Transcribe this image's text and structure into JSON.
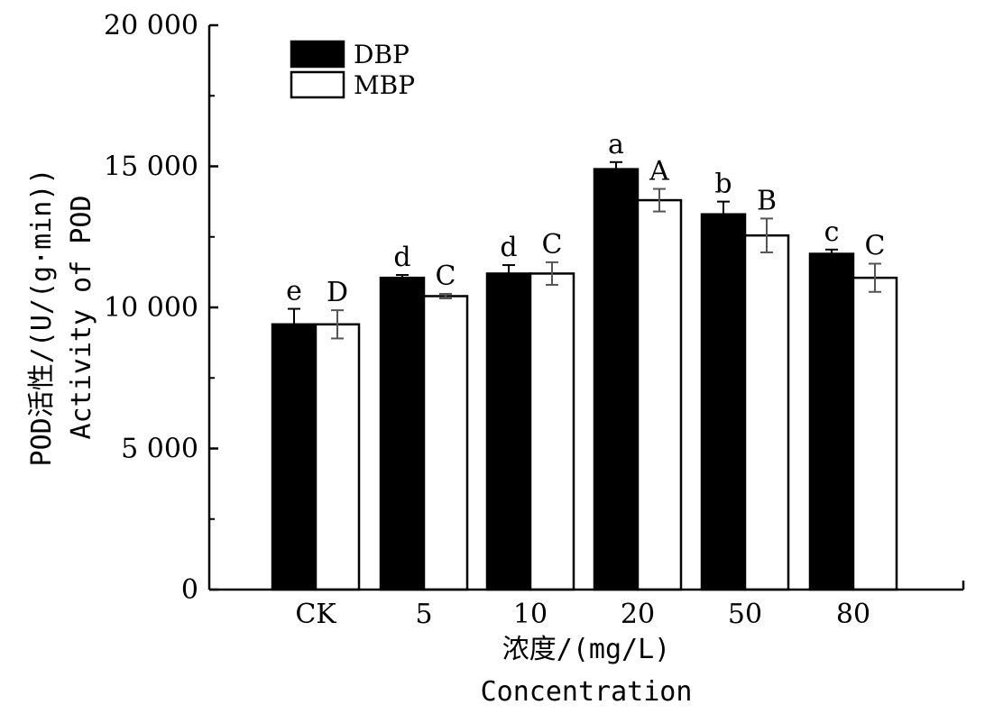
{
  "chart_data": {
    "type": "bar",
    "categories": [
      "CK",
      "5",
      "10",
      "20",
      "50",
      "80"
    ],
    "series": [
      {
        "name": "DBP",
        "color": "#000000",
        "values": [
          9400,
          11050,
          11200,
          14900,
          13300,
          11900
        ],
        "errors": [
          550,
          100,
          300,
          250,
          450,
          150
        ],
        "letters": [
          "e",
          "d",
          "d",
          "a",
          "b",
          "c"
        ]
      },
      {
        "name": "MBP",
        "color": "#ffffff",
        "values": [
          9400,
          10400,
          11200,
          13800,
          12550,
          11050
        ],
        "errors": [
          500,
          80,
          400,
          400,
          600,
          500
        ],
        "letters": [
          "D",
          "C",
          "C",
          "A",
          "B",
          "C"
        ]
      }
    ],
    "xlabel_cn": "浓度/(mg/L)",
    "xlabel_en": "Concentration",
    "ylabel_cn": "POD活性/(U/(g·min))",
    "ylabel_en": "Activity of POD",
    "ylim": [
      0,
      20000
    ],
    "yticks": [
      0,
      5000,
      10000,
      15000,
      20000
    ],
    "ytick_labels": [
      "0",
      "5 000",
      "10 000",
      "15 000",
      "20 000"
    ],
    "legend_position": "top-left",
    "grid": false
  }
}
